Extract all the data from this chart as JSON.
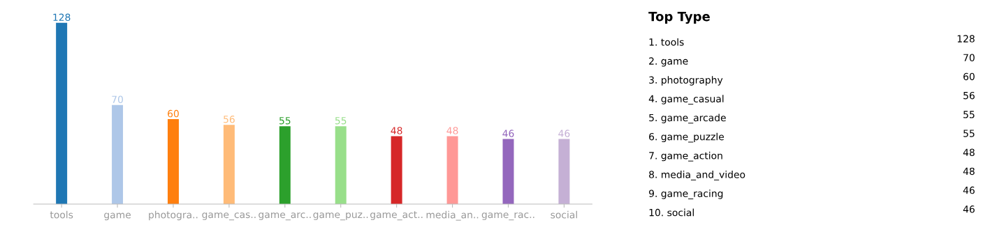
{
  "chart_data": [
    {
      "type": "bar",
      "categories": [
        "tools",
        "game",
        "photogra..",
        "game_cas..",
        "game_arc..",
        "game_puz..",
        "game_act..",
        "media_an..",
        "game_rac..",
        "social"
      ],
      "values": [
        128,
        70,
        60,
        56,
        55,
        55,
        48,
        48,
        46,
        46
      ],
      "colors": [
        "#1f77b4",
        "#aec7e8",
        "#ff7f0e",
        "#ffbb78",
        "#2ca02c",
        "#98df8a",
        "#d62728",
        "#ff9896",
        "#9467bd",
        "#c5b0d5"
      ],
      "data_labels": true,
      "grid": false,
      "legend": false,
      "tick_labels": "x"
    },
    {
      "type": "other",
      "title": "Top Type",
      "annotations": [
        "1. tools",
        "128",
        "2. game",
        "70",
        "3. photography",
        "60",
        "4. game_casual",
        "56",
        "5. game_arcade",
        "55",
        "6. game_puzzle",
        "55",
        "7. game_action",
        "48",
        "8. media_and_video",
        "48",
        "9. game_racing",
        "46",
        "10. social",
        "46"
      ]
    }
  ]
}
